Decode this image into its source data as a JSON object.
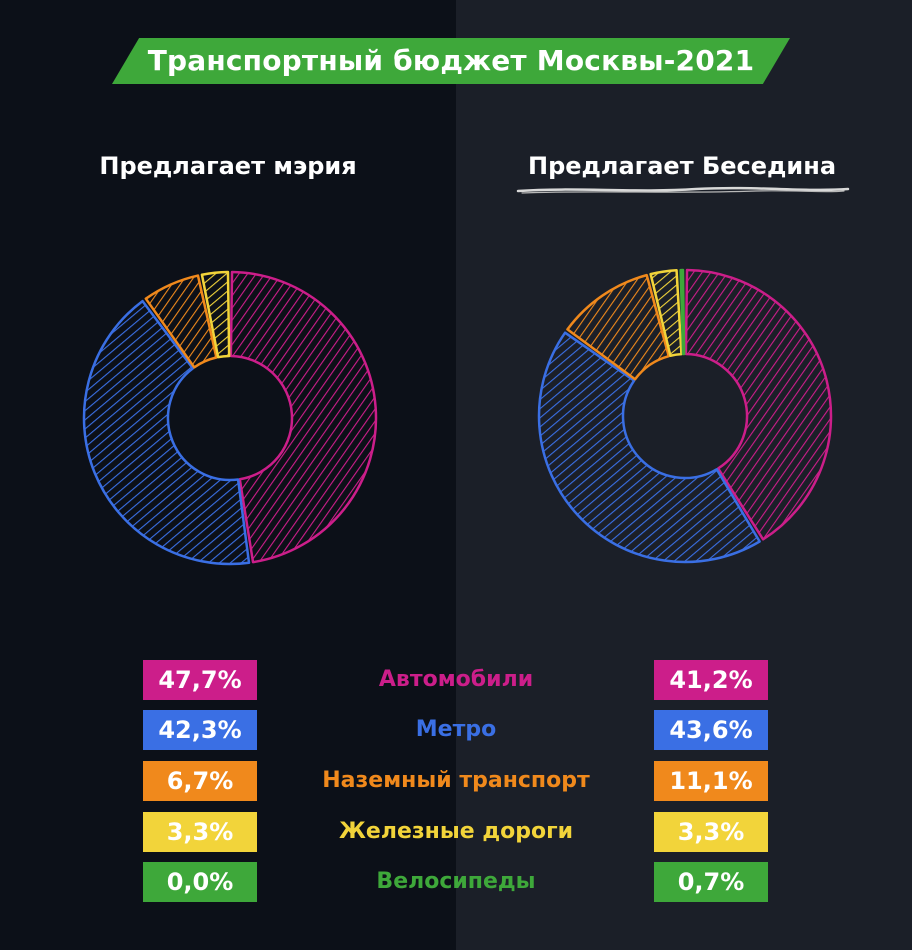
{
  "title": "Транспортный бюджет Москвы-2021",
  "colors": {
    "banner": "#3ea83a",
    "categories": [
      "#cc1e8a",
      "#3a6fe4",
      "#f0891c",
      "#f2d43a",
      "#3ea83a"
    ]
  },
  "chart_data": [
    {
      "type": "pie",
      "title": "Предлагает мэрия",
      "categories": [
        "Автомобили",
        "Метро",
        "Наземный транспорт",
        "Железные дороги",
        "Велосипеды"
      ],
      "values": [
        47.7,
        42.3,
        6.7,
        3.3,
        0.0
      ],
      "value_labels": [
        "47,7%",
        "42,3%",
        "6,7%",
        "3,3%",
        "0,0%"
      ]
    },
    {
      "type": "pie",
      "title": "Предлагает Беседина",
      "categories": [
        "Автомобили",
        "Метро",
        "Наземный транспорт",
        "Железные дороги",
        "Велосипеды"
      ],
      "values": [
        41.2,
        43.6,
        11.1,
        3.3,
        0.7
      ],
      "value_labels": [
        "41,2%",
        "43,6%",
        "11,1%",
        "3,3%",
        "0,7%"
      ]
    }
  ]
}
